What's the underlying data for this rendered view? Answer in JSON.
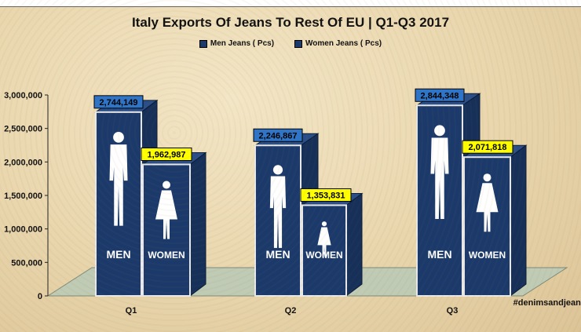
{
  "chart_data": {
    "type": "bar",
    "title": "Italy Exports Of Jeans To Rest Of EU | Q1-Q3 2017",
    "categories": [
      "Q1",
      "Q2",
      "Q3"
    ],
    "series": [
      {
        "name": "Men Jeans ( Pcs)",
        "values": [
          2744149,
          2246867,
          2844348
        ],
        "labels": [
          "2,744,149",
          "2,246,867",
          "2,844,348"
        ],
        "label_color": "#2e74c9",
        "icon": "man-icon",
        "sign_text": "MEN"
      },
      {
        "name": "Women Jeans ( Pcs)",
        "values": [
          1962987,
          1353831,
          2071818
        ],
        "labels": [
          "1,962,987",
          "1,353,831",
          "2,071,818"
        ],
        "label_color": "#ffff00",
        "icon": "woman-icon",
        "sign_text": "WOMEN"
      }
    ],
    "y_ticks": [
      "0",
      "500,000",
      "1,000,000",
      "1,500,000",
      "2,000,000",
      "2,500,000",
      "3,000,000"
    ],
    "ylim": [
      0,
      3000000
    ],
    "legend_position": "top",
    "bar_color": "#1b3a6b",
    "floor_color": "#bfcbb4"
  },
  "watermark": "#denimsandjeans"
}
